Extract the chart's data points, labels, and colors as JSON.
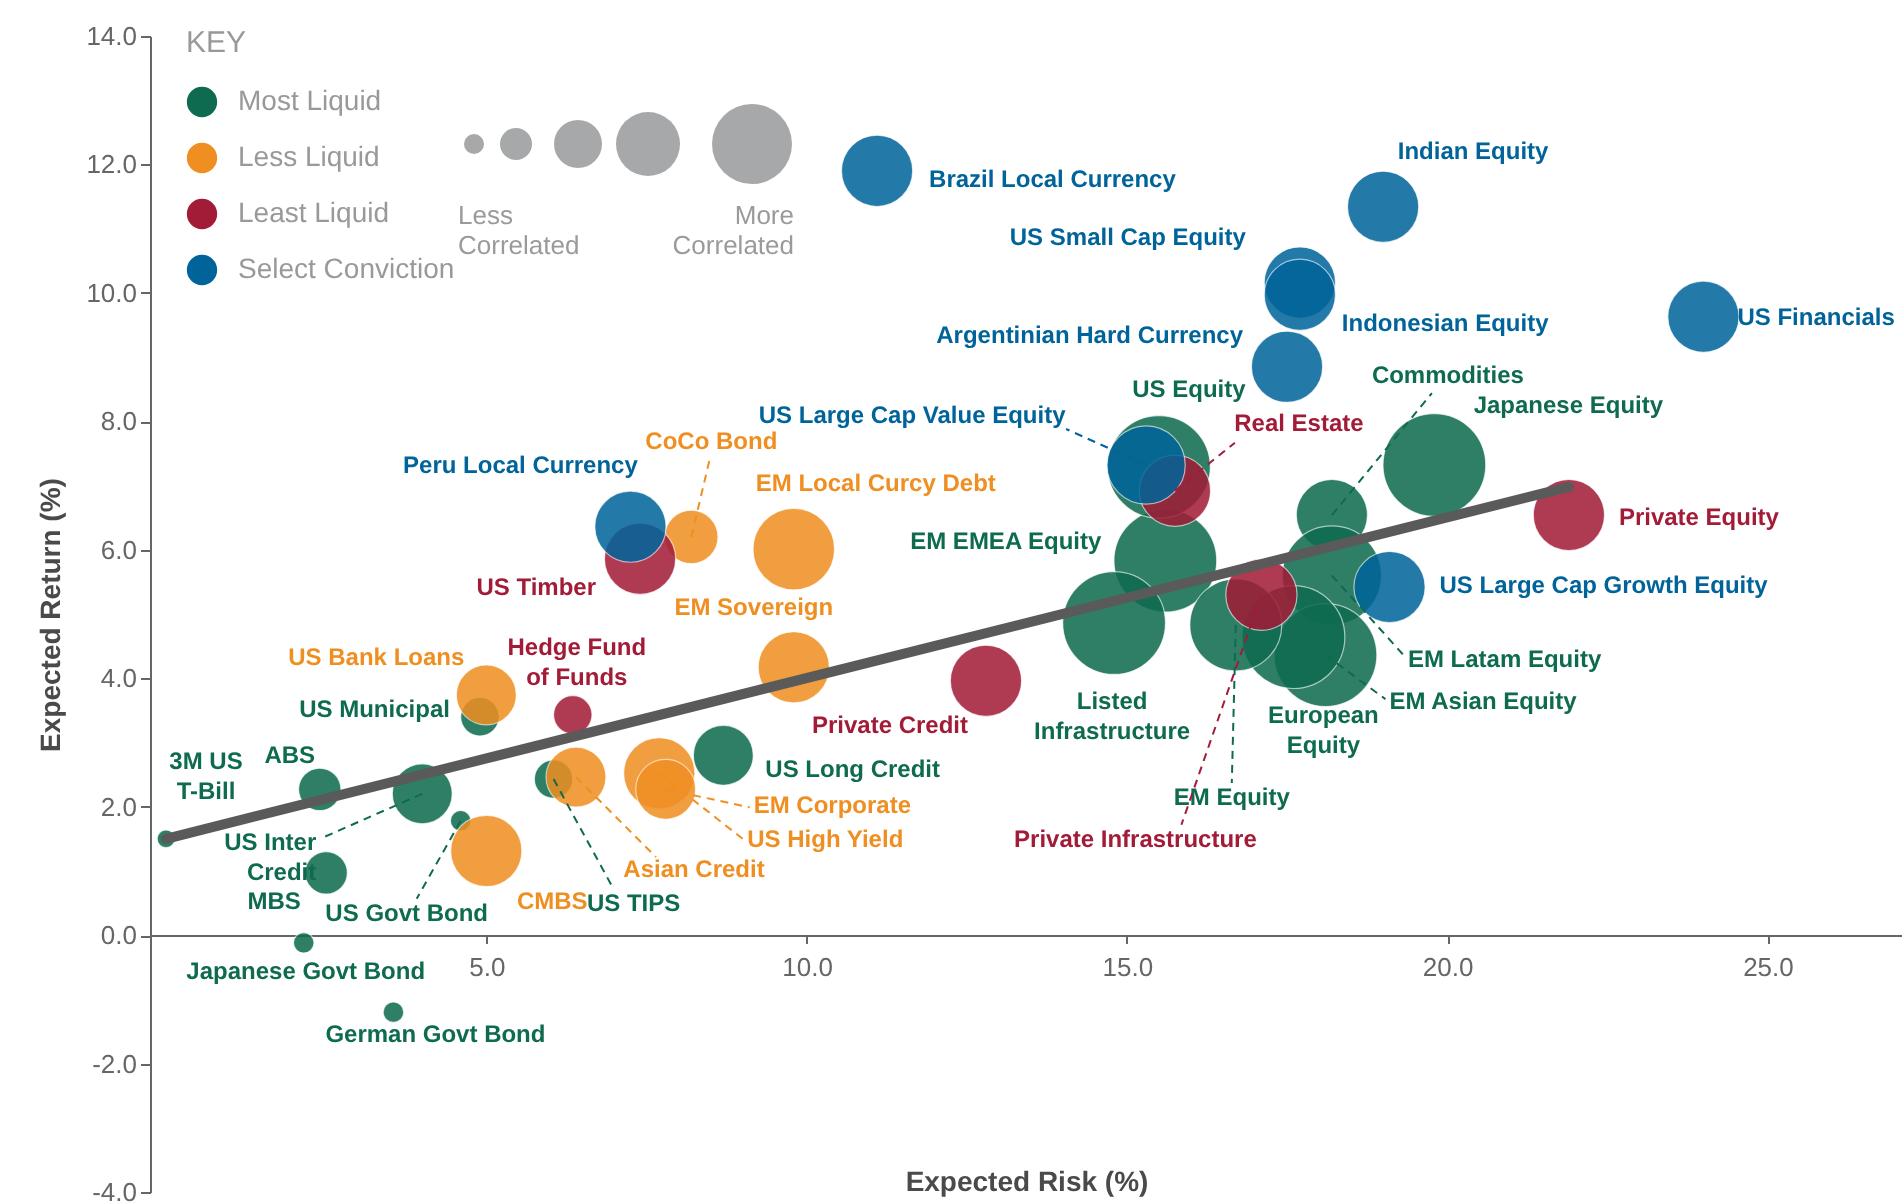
{
  "chart_data": {
    "type": "bubble",
    "xlabel": "Expected Risk (%)",
    "ylabel": "Expected Return (%)",
    "legend_title": "KEY",
    "legend": "top left",
    "relative": false,
    "xlim": [
      -0.25,
      27.1
    ],
    "xticks": [
      {
        "value": 5,
        "label": "5.0"
      },
      {
        "value": 10,
        "label": "10.0"
      },
      {
        "value": 15,
        "label": "15.0"
      },
      {
        "value": 20,
        "label": "20.0"
      },
      {
        "value": 25,
        "label": "25.0"
      }
    ],
    "ylim": [
      -4,
      14
    ],
    "yticks": [
      {
        "value": -4,
        "label": "-4.0"
      },
      {
        "value": -2,
        "label": "-2.0"
      },
      {
        "value": 0,
        "label": "0.0"
      },
      {
        "value": 2,
        "label": "2.0"
      },
      {
        "value": 4,
        "label": "4.0"
      },
      {
        "value": 6,
        "label": "6.0"
      },
      {
        "value": 8,
        "label": "8.0"
      },
      {
        "value": 10,
        "label": "10.0"
      },
      {
        "value": 12,
        "label": "12.0"
      },
      {
        "value": 14,
        "label": "14.0"
      }
    ],
    "series": [
      {
        "name": "Most Liquid",
        "color": "#0e6b4f",
        "x": [
          0.0,
          2.4,
          4.0,
          4.6,
          2.5,
          2.15,
          3.55,
          4.9,
          6.05,
          8.7,
          15.6,
          14.8,
          15.5,
          18.2,
          19.8,
          18.2,
          18.1,
          17.6,
          16.7
        ],
        "values": [
          1.5,
          2.27,
          2.2,
          1.78,
          0.97,
          -0.12,
          -1.2,
          3.4,
          2.43,
          2.8,
          5.83,
          4.86,
          7.29,
          6.54,
          7.32,
          5.6,
          4.36,
          4.64,
          4.83
        ],
        "sizes": [
          0.03,
          0.17,
          0.34,
          0.04,
          0.17,
          0.04,
          0.04,
          0.14,
          0.14,
          0.34,
          1,
          1,
          1,
          0.48,
          1,
          0.93,
          1,
          1,
          0.8
        ]
      },
      {
        "name": "Less Liquid",
        "color": "#ef8f22",
        "x": [
          5.0,
          5.0,
          6.4,
          7.7,
          7.8,
          8.2,
          9.8,
          9.8
        ],
        "values": [
          3.74,
          1.31,
          2.46,
          2.52,
          2.27,
          6.2,
          6.01,
          4.17
        ],
        "sizes": [
          0.34,
          0.48,
          0.34,
          0.48,
          0.34,
          0.27,
          0.63,
          0.48
        ]
      },
      {
        "name": "Least Liquid",
        "color": "#a21b37",
        "x": [
          6.35,
          7.4,
          12.8,
          15.75,
          17.1,
          21.9
        ],
        "values": [
          3.43,
          5.86,
          3.96,
          6.92,
          5.3,
          6.54
        ],
        "sizes": [
          0.14,
          0.48,
          0.48,
          0.48,
          0.48,
          0.48
        ]
      },
      {
        "name": "Select Conviction",
        "color": "#00649a",
        "x": [
          11.1,
          19.0,
          17.7,
          17.7,
          17.5,
          24.0,
          19.1,
          7.25,
          15.3
        ],
        "values": [
          11.9,
          11.34,
          10.16,
          9.97,
          8.85,
          9.63,
          5.42,
          6.36,
          7.32
        ],
        "sizes": [
          0.48,
          0.48,
          0.48,
          0.48,
          0.48,
          0.48,
          0.48,
          0.48,
          0.58
        ]
      },
      {
        "type": "line",
        "color": "#5a5a5a",
        "x": [
          0.0,
          21.9
        ],
        "values": [
          1.5,
          6.98
        ]
      }
    ],
    "annotations": [
      {
        "text": "3M US\nT-Bill",
        "x": 0.0,
        "y": 1.5
      },
      {
        "text": "ABS",
        "x": 2.4,
        "y": 2.27
      },
      {
        "text": "US Inter\nCredit",
        "x": 4.0,
        "y": 2.2
      },
      {
        "text": "US Govt Bond",
        "x": 4.6,
        "y": 1.78
      },
      {
        "text": "MBS",
        "x": 2.5,
        "y": 0.97
      },
      {
        "text": "Japanese Govt Bond",
        "x": 2.15,
        "y": -0.12
      },
      {
        "text": "German Govt Bond",
        "x": 3.55,
        "y": -1.2
      },
      {
        "text": "US Municipal",
        "x": 4.9,
        "y": 3.4
      },
      {
        "text": "US TIPS",
        "x": 6.05,
        "y": 2.43
      },
      {
        "text": "US Long Credit",
        "x": 8.7,
        "y": 2.8
      },
      {
        "text": "EM EMEA Equity",
        "x": 15.6,
        "y": 5.83
      },
      {
        "text": "Listed\nInfrastructure",
        "x": 14.8,
        "y": 4.86
      },
      {
        "text": "US Equity",
        "x": 15.5,
        "y": 7.29
      },
      {
        "text": "Commodities",
        "x": 18.2,
        "y": 6.54
      },
      {
        "text": "Japanese Equity",
        "x": 19.8,
        "y": 7.32
      },
      {
        "text": "EM Latam Equity",
        "x": 18.2,
        "y": 5.6
      },
      {
        "text": "EM Asian Equity",
        "x": 18.1,
        "y": 4.36
      },
      {
        "text": "European\nEquity",
        "x": 17.6,
        "y": 4.64
      },
      {
        "text": "EM Equity",
        "x": 16.7,
        "y": 4.83
      },
      {
        "text": "US Bank Loans",
        "x": 5.0,
        "y": 3.74
      },
      {
        "text": "CMBS",
        "x": 5.0,
        "y": 1.31
      },
      {
        "text": "Asian Credit",
        "x": 6.4,
        "y": 2.46
      },
      {
        "text": "US High Yield",
        "x": 7.7,
        "y": 2.52
      },
      {
        "text": "EM Corporate",
        "x": 7.8,
        "y": 2.27
      },
      {
        "text": "CoCo Bond",
        "x": 8.2,
        "y": 6.2
      },
      {
        "text": "EM Local Curcy Debt",
        "x": 9.8,
        "y": 6.01
      },
      {
        "text": "EM Sovereign",
        "x": 9.8,
        "y": 4.17
      },
      {
        "text": "Hedge Fund\nof Funds",
        "x": 6.35,
        "y": 3.43
      },
      {
        "text": "US Timber",
        "x": 7.4,
        "y": 5.86
      },
      {
        "text": "Private Credit",
        "x": 12.8,
        "y": 3.96
      },
      {
        "text": "Real Estate",
        "x": 15.75,
        "y": 6.92
      },
      {
        "text": "Private Infrastructure",
        "x": 17.1,
        "y": 5.3
      },
      {
        "text": "Private Equity",
        "x": 21.9,
        "y": 6.54
      },
      {
        "text": "Brazil Local Currency",
        "x": 11.1,
        "y": 11.9
      },
      {
        "text": "Indian Equity",
        "x": 19.0,
        "y": 11.34
      },
      {
        "text": "US Small Cap Equity",
        "x": 17.7,
        "y": 10.16
      },
      {
        "text": "Indonesian Equity",
        "x": 17.7,
        "y": 9.97
      },
      {
        "text": "Argentinian Hard Currency",
        "x": 17.5,
        "y": 8.85
      },
      {
        "text": "US Financials",
        "x": 24.0,
        "y": 9.63
      },
      {
        "text": "US Large Cap Growth Equity",
        "x": 19.1,
        "y": 5.42
      },
      {
        "text": "Peru Local Currency",
        "x": 7.25,
        "y": 6.36
      },
      {
        "text": "US Large Cap Value Equity",
        "x": 15.3,
        "y": 7.32
      },
      "Less Correlated",
      "More Correlated"
    ]
  }
}
